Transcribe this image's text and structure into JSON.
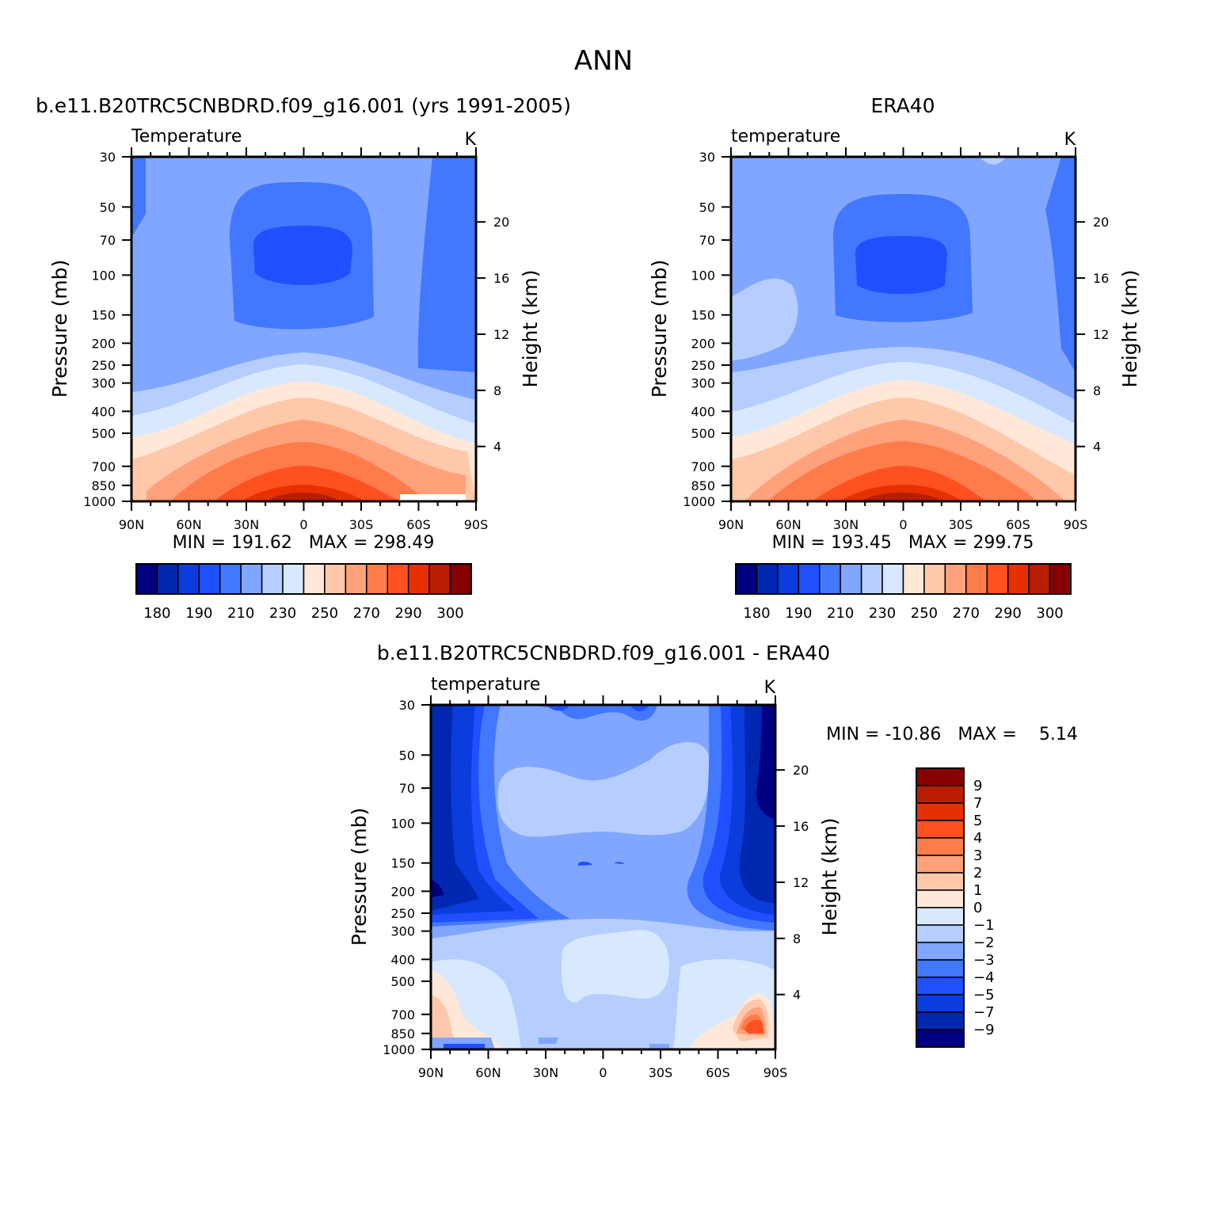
{
  "page_title": "ANN",
  "chart_data": [
    {
      "type": "heatmap",
      "plot_type": "pressure-latitude contour (filled)",
      "title": "b.e11.B20TRC5CNBDRD.f09_g16.001 (yrs 1991-2005)",
      "variable_label": "Temperature",
      "units": "K",
      "ylabel": "Pressure (mb)",
      "ylabel_right": "Height (km)",
      "y_log_scale": true,
      "y_ticks": [
        "30",
        "50",
        "70",
        "100",
        "150",
        "200",
        "250",
        "300",
        "400",
        "500",
        "700",
        "850",
        "1000"
      ],
      "y_right_ticks": [
        "20",
        "16",
        "12",
        "8",
        "4"
      ],
      "x_ticks": [
        "90N",
        "60N",
        "30N",
        "0",
        "30S",
        "60S",
        "90S"
      ],
      "stats_text": "MIN = 191.62   MAX = 298.49",
      "min": 191.62,
      "max": 298.49,
      "colorbar_orientation": "horizontal",
      "colorbar_labels": [
        "180",
        "190",
        "210",
        "230",
        "250",
        "270",
        "290",
        "300"
      ],
      "contour_levels": [
        180,
        185,
        190,
        200,
        210,
        220,
        230,
        240,
        250,
        260,
        270,
        280,
        290,
        295,
        300
      ],
      "colorbar_colors": [
        "#000080",
        "#0027b0",
        "#0a3ddb",
        "#1f50ff",
        "#4277ff",
        "#80a6ff",
        "#b5ceff",
        "#d8e9ff",
        "#ffe8d8",
        "#ffc8ab",
        "#ffa17a",
        "#ff7b4a",
        "#ff5020",
        "#e63000",
        "#b81d00",
        "#860000"
      ]
    },
    {
      "type": "heatmap",
      "plot_type": "pressure-latitude contour (filled)",
      "title": "ERA40",
      "variable_label": "temperature",
      "units": "K",
      "ylabel": "Pressure (mb)",
      "ylabel_right": "Height (km)",
      "y_log_scale": true,
      "y_ticks": [
        "30",
        "50",
        "70",
        "100",
        "150",
        "200",
        "250",
        "300",
        "400",
        "500",
        "700",
        "850",
        "1000"
      ],
      "y_right_ticks": [
        "20",
        "16",
        "12",
        "8",
        "4"
      ],
      "x_ticks": [
        "90N",
        "60N",
        "30N",
        "0",
        "30S",
        "60S",
        "90S"
      ],
      "stats_text": "MIN = 193.45   MAX = 299.75",
      "min": 193.45,
      "max": 299.75,
      "colorbar_orientation": "horizontal",
      "colorbar_labels": [
        "180",
        "190",
        "210",
        "230",
        "250",
        "270",
        "290",
        "300"
      ],
      "contour_levels": [
        180,
        185,
        190,
        200,
        210,
        220,
        230,
        240,
        250,
        260,
        270,
        280,
        290,
        295,
        300
      ],
      "colorbar_colors": [
        "#000080",
        "#0027b0",
        "#0a3ddb",
        "#1f50ff",
        "#4277ff",
        "#80a6ff",
        "#b5ceff",
        "#d8e9ff",
        "#ffe8d8",
        "#ffc8ab",
        "#ffa17a",
        "#ff7b4a",
        "#ff5020",
        "#e63000",
        "#b81d00",
        "#860000"
      ]
    },
    {
      "type": "heatmap",
      "plot_type": "pressure-latitude difference contour (filled)",
      "title": "b.e11.B20TRC5CNBDRD.f09_g16.001 - ERA40",
      "variable_label": "temperature",
      "units": "K",
      "ylabel": "Pressure (mb)",
      "ylabel_right": "Height (km)",
      "y_log_scale": true,
      "y_ticks": [
        "30",
        "50",
        "70",
        "100",
        "150",
        "200",
        "250",
        "300",
        "400",
        "500",
        "700",
        "850",
        "1000"
      ],
      "y_right_ticks": [
        "20",
        "16",
        "12",
        "8",
        "4"
      ],
      "x_ticks": [
        "90N",
        "60N",
        "30N",
        "0",
        "30S",
        "60S",
        "90S"
      ],
      "stats_text": "MIN = -10.86   MAX =    5.14",
      "min": -10.86,
      "max": 5.14,
      "colorbar_orientation": "vertical",
      "colorbar_labels": [
        "9",
        "7",
        "5",
        "4",
        "3",
        "2",
        "1",
        "0",
        "-1",
        "-2",
        "-3",
        "-4",
        "-5",
        "-7",
        "-9"
      ],
      "contour_levels": [
        -9,
        -7,
        -5,
        -4,
        -3,
        -2,
        -1,
        0,
        1,
        2,
        3,
        4,
        5,
        7,
        9
      ],
      "colorbar_colors": [
        "#860000",
        "#b81d00",
        "#e63000",
        "#ff5020",
        "#ff7b4a",
        "#ffa17a",
        "#ffc8ab",
        "#ffe8d8",
        "#d8e9ff",
        "#b5ceff",
        "#80a6ff",
        "#4277ff",
        "#1f50ff",
        "#0a3ddb",
        "#0027b0",
        "#000080"
      ]
    }
  ]
}
